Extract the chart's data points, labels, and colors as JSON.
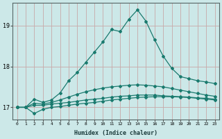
{
  "xlabel": "Humidex (Indice chaleur)",
  "x": [
    0,
    1,
    2,
    3,
    4,
    5,
    6,
    7,
    8,
    9,
    10,
    11,
    12,
    13,
    14,
    15,
    16,
    17,
    18,
    19,
    20,
    21,
    22,
    23
  ],
  "line1": [
    17.0,
    17.0,
    16.85,
    16.95,
    17.0,
    17.02,
    17.05,
    17.08,
    17.1,
    17.12,
    17.15,
    17.18,
    17.2,
    17.22,
    17.24,
    17.25,
    17.26,
    17.26,
    17.26,
    17.25,
    17.24,
    17.22,
    17.2,
    17.18
  ],
  "line2": [
    17.0,
    17.0,
    17.05,
    17.05,
    17.08,
    17.1,
    17.12,
    17.15,
    17.18,
    17.2,
    17.22,
    17.25,
    17.27,
    17.28,
    17.3,
    17.3,
    17.3,
    17.28,
    17.27,
    17.26,
    17.25,
    17.23,
    17.22,
    17.2
  ],
  "line3": [
    17.0,
    17.0,
    17.1,
    17.08,
    17.12,
    17.18,
    17.25,
    17.32,
    17.38,
    17.43,
    17.47,
    17.5,
    17.52,
    17.54,
    17.55,
    17.54,
    17.52,
    17.5,
    17.46,
    17.42,
    17.38,
    17.34,
    17.3,
    17.27
  ],
  "line4": [
    17.0,
    17.0,
    17.2,
    17.12,
    17.18,
    17.35,
    17.65,
    17.85,
    18.1,
    18.35,
    18.6,
    18.9,
    18.85,
    19.15,
    19.38,
    19.1,
    18.65,
    18.25,
    17.95,
    17.75,
    17.7,
    17.65,
    17.62,
    17.58
  ],
  "line_color": "#1a7a6e",
  "bg_color": "#cce8e8",
  "grid_color": "#c8a8a8",
  "ylim": [
    16.7,
    19.55
  ],
  "xlim": [
    -0.5,
    23.5
  ],
  "yticks": [
    17,
    18,
    19
  ],
  "xticks": [
    0,
    1,
    2,
    3,
    4,
    5,
    6,
    7,
    8,
    9,
    10,
    11,
    12,
    13,
    14,
    15,
    16,
    17,
    18,
    19,
    20,
    21,
    22,
    23
  ]
}
